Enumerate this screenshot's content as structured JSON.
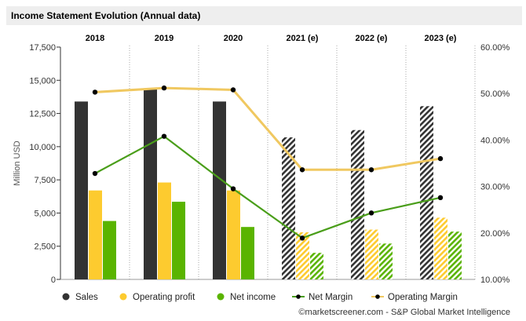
{
  "header": {
    "title": "Income Statement Evolution (Annual data)"
  },
  "footer": {
    "credit": "©marketscreener.com - S&P Global Market Intelligence"
  },
  "colors": {
    "sales": "#333333",
    "operating_profit": "#fdcb2f",
    "net_income": "#5ab400",
    "net_margin_line": "#4a9e1a",
    "operating_margin_line": "#f0c860",
    "gridline": "#aaaaaa"
  },
  "chart_data": {
    "type": "bar",
    "title": "Income Statement Evolution (Annual data)",
    "categories": [
      "2018",
      "2019",
      "2020",
      "2021 (e)",
      "2022 (e)",
      "2023 (e)"
    ],
    "estimated": [
      false,
      false,
      false,
      true,
      true,
      true
    ],
    "ylabel": "Million USD",
    "ylim": [
      0,
      17500
    ],
    "yticks": [
      "0",
      "2,500",
      "5,000",
      "7,500",
      "10,000",
      "12,500",
      "15,000",
      "17,500"
    ],
    "y2lim": [
      10,
      60
    ],
    "y2ticks": [
      "10.00%",
      "20.00%",
      "30.00%",
      "40.00%",
      "50.00%",
      "60.00%"
    ],
    "series": [
      {
        "name": "Sales",
        "kind": "bar",
        "values": [
          13400,
          14350,
          13400,
          10700,
          11250,
          13050
        ]
      },
      {
        "name": "Operating profit",
        "kind": "bar",
        "values": [
          6700,
          7300,
          6700,
          3550,
          3750,
          4650
        ]
      },
      {
        "name": "Net income",
        "kind": "bar",
        "values": [
          4400,
          5850,
          3950,
          2000,
          2700,
          3600
        ]
      },
      {
        "name": "Net Margin",
        "kind": "line",
        "axis": "right",
        "values": [
          32.8,
          40.8,
          29.5,
          18.9,
          24.3,
          27.6
        ]
      },
      {
        "name": "Operating Margin",
        "kind": "line",
        "axis": "right",
        "values": [
          50.3,
          51.2,
          50.8,
          33.6,
          33.6,
          36.0
        ]
      }
    ],
    "legend_position": "bottom"
  }
}
